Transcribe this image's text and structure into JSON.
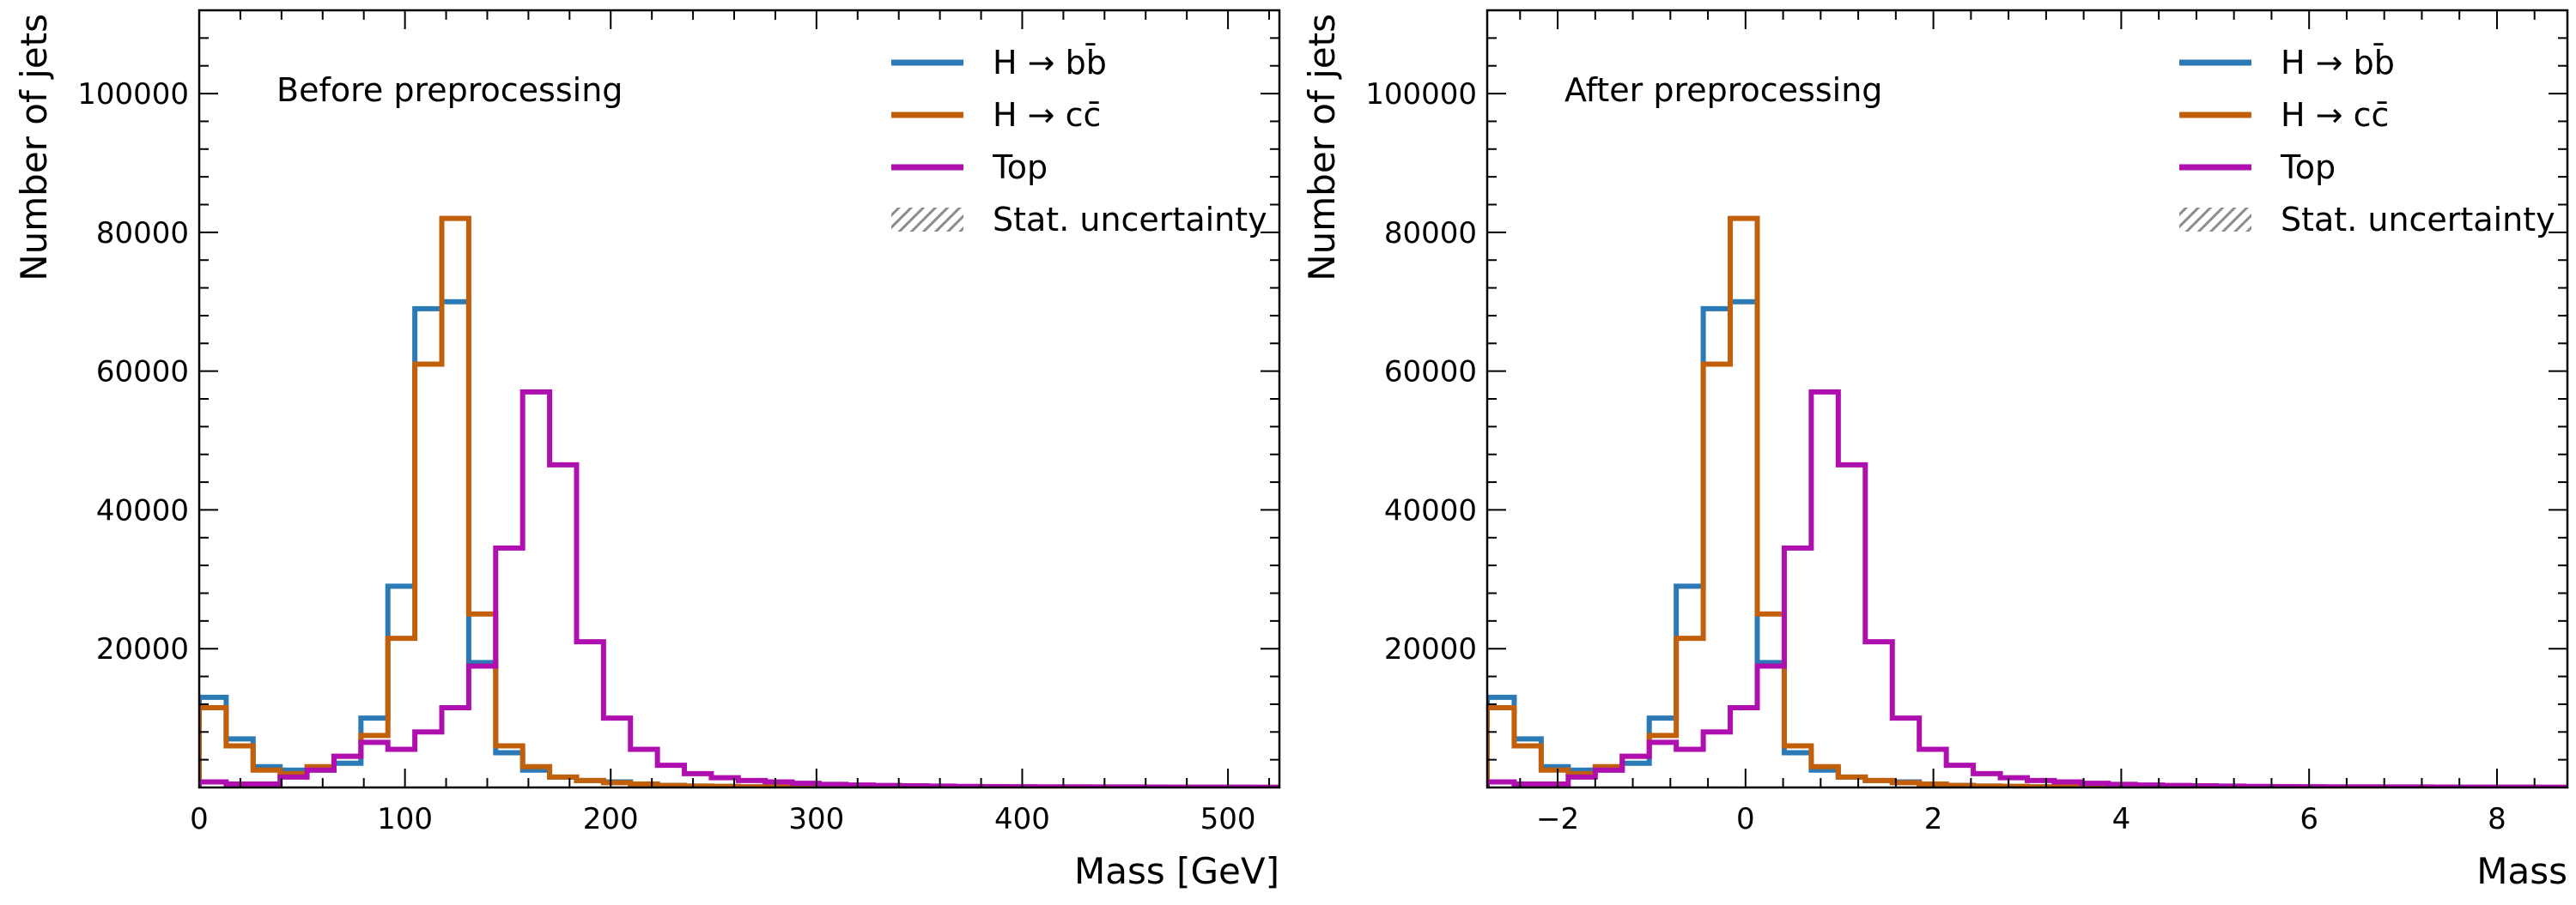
{
  "colors": {
    "hbb": "#2b79b5",
    "hcc": "#c25f0a",
    "top": "#b00fb0",
    "stat_hatch": "#8c8c8c"
  },
  "chart_data": [
    {
      "type": "histogram",
      "annotation": "Before preprocessing",
      "xlabel": "Mass [GeV]",
      "ylabel": "Number of jets",
      "xlim": [
        0,
        525
      ],
      "ylim": [
        0,
        112000
      ],
      "xticks": [
        0,
        100,
        200,
        300,
        400,
        500
      ],
      "xtick_labels": [
        "0",
        "100",
        "200",
        "300",
        "400",
        "500"
      ],
      "yticks": [
        20000,
        40000,
        60000,
        80000,
        100000
      ],
      "ytick_labels": [
        "20000",
        "40000",
        "60000",
        "80000",
        "100000"
      ],
      "legend_position": "top-right",
      "bin_edges": [
        0,
        13.1,
        26.2,
        39.3,
        52.4,
        65.5,
        78.6,
        91.7,
        104.8,
        117.9,
        131,
        144.1,
        157.2,
        170.3,
        183.4,
        196.5,
        209.6,
        222.7,
        235.8,
        248.9,
        262,
        275.1,
        288.2,
        301.3,
        314.4,
        327.5,
        340.6,
        353.7,
        366.8,
        379.9,
        393,
        406.1,
        419.2,
        432.3,
        445.4,
        458.5,
        471.6,
        484.7,
        497.8,
        510.9,
        524
      ],
      "series": [
        {
          "name": "H → bb̄",
          "color_key": "hbb",
          "values": [
            13000,
            7000,
            3000,
            2500,
            2500,
            3500,
            10000,
            29000,
            69000,
            70000,
            18000,
            5000,
            2500,
            1500,
            1000,
            800,
            500,
            300,
            200,
            150,
            100,
            80,
            60,
            50,
            40,
            30,
            30,
            20,
            20,
            20,
            15,
            15,
            10,
            10,
            10,
            10,
            10,
            10,
            10,
            10
          ]
        },
        {
          "name": "H → cc̄",
          "color_key": "hcc",
          "values": [
            11500,
            6000,
            2500,
            2000,
            3000,
            4500,
            7500,
            21500,
            61000,
            82000,
            25000,
            6000,
            3000,
            1500,
            1000,
            700,
            500,
            300,
            200,
            150,
            100,
            80,
            60,
            50,
            40,
            30,
            30,
            20,
            20,
            20,
            15,
            15,
            10,
            10,
            10,
            10,
            10,
            10,
            10,
            10
          ]
        },
        {
          "name": "Top",
          "color_key": "top",
          "values": [
            800,
            500,
            500,
            1500,
            2500,
            4500,
            6500,
            5500,
            8000,
            11500,
            17500,
            34500,
            57000,
            46500,
            21000,
            10000,
            5500,
            3200,
            2000,
            1400,
            1000,
            800,
            600,
            450,
            350,
            300,
            250,
            200,
            150,
            130,
            110,
            100,
            90,
            80,
            70,
            60,
            50,
            45,
            40,
            30
          ]
        }
      ],
      "legend_extra": "Stat. uncertainty"
    },
    {
      "type": "histogram",
      "annotation": "After preprocessing",
      "xlabel": "Mass",
      "ylabel": "Number of jets",
      "xlim": [
        -2.75,
        8.75
      ],
      "ylim": [
        0,
        112000
      ],
      "xticks": [
        -2,
        0,
        2,
        4,
        6,
        8
      ],
      "xtick_labels": [
        "−2",
        "0",
        "2",
        "4",
        "6",
        "8"
      ],
      "yticks": [
        20000,
        40000,
        60000,
        80000,
        100000
      ],
      "ytick_labels": [
        "20000",
        "40000",
        "60000",
        "80000",
        "100000"
      ],
      "legend_position": "top-right",
      "bin_edges": [
        -2.75,
        -2.4625,
        -2.175,
        -1.8875,
        -1.6,
        -1.3125,
        -1.025,
        -0.7375,
        -0.45,
        -0.1625,
        0.125,
        0.4125,
        0.7,
        0.9875,
        1.275,
        1.5625,
        1.85,
        2.1375,
        2.425,
        2.7125,
        3.0,
        3.2875,
        3.575,
        3.8625,
        4.15,
        4.4375,
        4.725,
        5.0125,
        5.3,
        5.5875,
        5.875,
        6.1625,
        6.45,
        6.7375,
        7.025,
        7.3125,
        7.6,
        7.8875,
        8.175,
        8.4625,
        8.75
      ],
      "series": [
        {
          "name": "H → bb̄",
          "color_key": "hbb",
          "values": [
            13000,
            7000,
            3000,
            2500,
            2500,
            3500,
            10000,
            29000,
            69000,
            70000,
            18000,
            5000,
            2500,
            1500,
            1000,
            800,
            500,
            300,
            200,
            150,
            100,
            80,
            60,
            50,
            40,
            30,
            30,
            20,
            20,
            20,
            15,
            15,
            10,
            10,
            10,
            10,
            10,
            10,
            10,
            10
          ]
        },
        {
          "name": "H → cc̄",
          "color_key": "hcc",
          "values": [
            11500,
            6000,
            2500,
            2000,
            3000,
            4500,
            7500,
            21500,
            61000,
            82000,
            25000,
            6000,
            3000,
            1500,
            1000,
            700,
            500,
            300,
            200,
            150,
            100,
            80,
            60,
            50,
            40,
            30,
            30,
            20,
            20,
            20,
            15,
            15,
            10,
            10,
            10,
            10,
            10,
            10,
            10,
            10
          ]
        },
        {
          "name": "Top",
          "color_key": "top",
          "values": [
            800,
            500,
            500,
            1500,
            2500,
            4500,
            6500,
            5500,
            8000,
            11500,
            17500,
            34500,
            57000,
            46500,
            21000,
            10000,
            5500,
            3200,
            2000,
            1400,
            1000,
            800,
            600,
            450,
            350,
            300,
            250,
            200,
            150,
            130,
            110,
            100,
            90,
            80,
            70,
            60,
            50,
            45,
            40,
            30
          ]
        }
      ],
      "legend_extra": "Stat. uncertainty"
    }
  ]
}
